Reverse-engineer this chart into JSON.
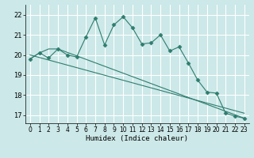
{
  "title": "",
  "xlabel": "Humidex (Indice chaleur)",
  "ylabel": "",
  "bg_color": "#cce8e8",
  "grid_color": "#ffffff",
  "line_color": "#2e7d6e",
  "xlim": [
    -0.5,
    23.5
  ],
  "ylim": [
    16.6,
    22.5
  ],
  "yticks": [
    17,
    18,
    19,
    20,
    21,
    22
  ],
  "xticks": [
    0,
    1,
    2,
    3,
    4,
    5,
    6,
    7,
    8,
    9,
    10,
    11,
    12,
    13,
    14,
    15,
    16,
    17,
    18,
    19,
    20,
    21,
    22,
    23
  ],
  "series1_x": [
    0,
    1,
    2,
    3,
    4,
    5,
    6,
    7,
    8,
    9,
    10,
    11,
    12,
    13,
    14,
    15,
    16,
    17,
    18,
    19,
    20,
    21,
    22,
    23
  ],
  "series1_y": [
    19.8,
    20.1,
    19.85,
    20.3,
    20.0,
    19.9,
    20.9,
    21.85,
    20.5,
    21.5,
    21.9,
    21.35,
    20.55,
    20.6,
    21.0,
    20.2,
    20.4,
    19.6,
    18.75,
    18.15,
    18.1,
    17.1,
    16.95,
    16.85
  ],
  "series2_x": [
    0,
    1,
    2,
    3,
    23
  ],
  "series2_y": [
    19.8,
    20.1,
    20.3,
    20.3,
    16.85
  ],
  "trend_x": [
    0,
    23
  ],
  "trend_y": [
    20.0,
    17.1
  ]
}
